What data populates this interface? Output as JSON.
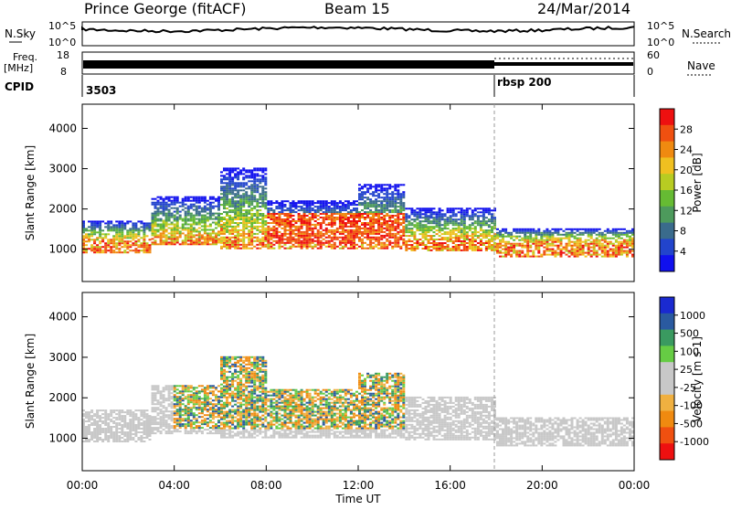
{
  "header": {
    "station": "Prince George (fitACF)",
    "beam": "Beam 15",
    "date": "24/Mar/2014"
  },
  "strips": {
    "nsky_label": "N.Sky",
    "nsky_top": "10^5",
    "nsky_bottom": "10^0",
    "nsearch_label": "N.Search",
    "nsearch_top": "10^5",
    "nsearch_bottom": "10^0",
    "freq_label": "Freq.",
    "freq_unit": "[MHz]",
    "freq_top": "18",
    "freq_bottom": "8",
    "nave_top": "60",
    "nave_bottom": "0",
    "nave_label": "Nave",
    "cpid_label": "CPID",
    "cpid_1": "3503",
    "cpid_2": "rbsp 200"
  },
  "colors": {
    "power": [
      "#1010ee",
      "#2244cc",
      "#3a6b8c",
      "#4d9a5c",
      "#66bb33",
      "#b8cc22",
      "#f0c020",
      "#f08a10",
      "#f05010",
      "#ee1010"
    ],
    "velocity": [
      "#ee1010",
      "#f05010",
      "#f08a10",
      "#f0b040",
      "#c8c8c8",
      "#c8c8c8",
      "#66cc44",
      "#3a9a60",
      "#2a5aa0",
      "#1a2ad0"
    ]
  },
  "chart_data": [
    {
      "type": "heatmap",
      "panel": "power",
      "ylabel": "Slant Range [km]",
      "y_ticks": [
        "1000",
        "2000",
        "3000",
        "4000"
      ],
      "ylim": [
        200,
        4600
      ],
      "x_ticks": [
        "00:00",
        "04:00",
        "08:00",
        "12:00",
        "16:00",
        "20:00",
        "00:00"
      ],
      "xlim_hours": [
        0,
        24
      ],
      "colorbar_label": "Power [dB]",
      "colorbar_ticks": [
        "4",
        "8",
        "12",
        "16",
        "20",
        "24",
        "28"
      ],
      "cpid_change_hour": 18
    },
    {
      "type": "heatmap",
      "panel": "velocity",
      "ylabel": "Slant Range [km]",
      "y_ticks": [
        "1000",
        "2000",
        "3000",
        "4000"
      ],
      "ylim": [
        200,
        4600
      ],
      "x_ticks": [
        "00:00",
        "04:00",
        "08:00",
        "12:00",
        "16:00",
        "20:00",
        "00:00"
      ],
      "xlim_hours": [
        0,
        24
      ],
      "xlabel": "Time UT",
      "colorbar_label": "Velocity [m s-1]",
      "colorbar_ticks": [
        "1000",
        "500",
        "100",
        "25",
        "-25",
        "-100",
        "-500",
        "-1000"
      ],
      "cpid_change_hour": 18
    }
  ]
}
